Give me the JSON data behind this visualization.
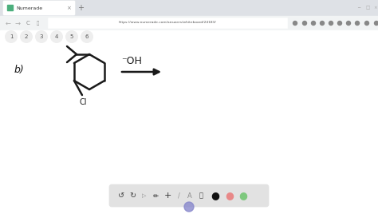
{
  "bg_color": "#e8e8e8",
  "tab_bar_color": "#dee1e6",
  "addr_bar_color": "#f1f3f4",
  "page_color": "#ffffff",
  "tab_active_color": "#ffffff",
  "tab_text": "Numerade",
  "tab_favicon_color": "#4caf7d",
  "tab_close": "x",
  "url": "https://www.numerade.com/answers/whiteboard/24183/",
  "tab_numbers": [
    "1",
    "2",
    "3",
    "4",
    "5",
    "6"
  ],
  "label_b": "b)",
  "line_color": "#1a1a1a",
  "toolbar_bg": "#e2e2e2",
  "toolbar_border": "#cccccc",
  "black_dot": "#111111",
  "pink_dot": "#e88888",
  "green_dot": "#7ec87e",
  "blue_drop": "#8888cc",
  "win_btn_colors": [
    "#aaaaaa",
    "#aaaaaa",
    "#aaaaaa"
  ]
}
